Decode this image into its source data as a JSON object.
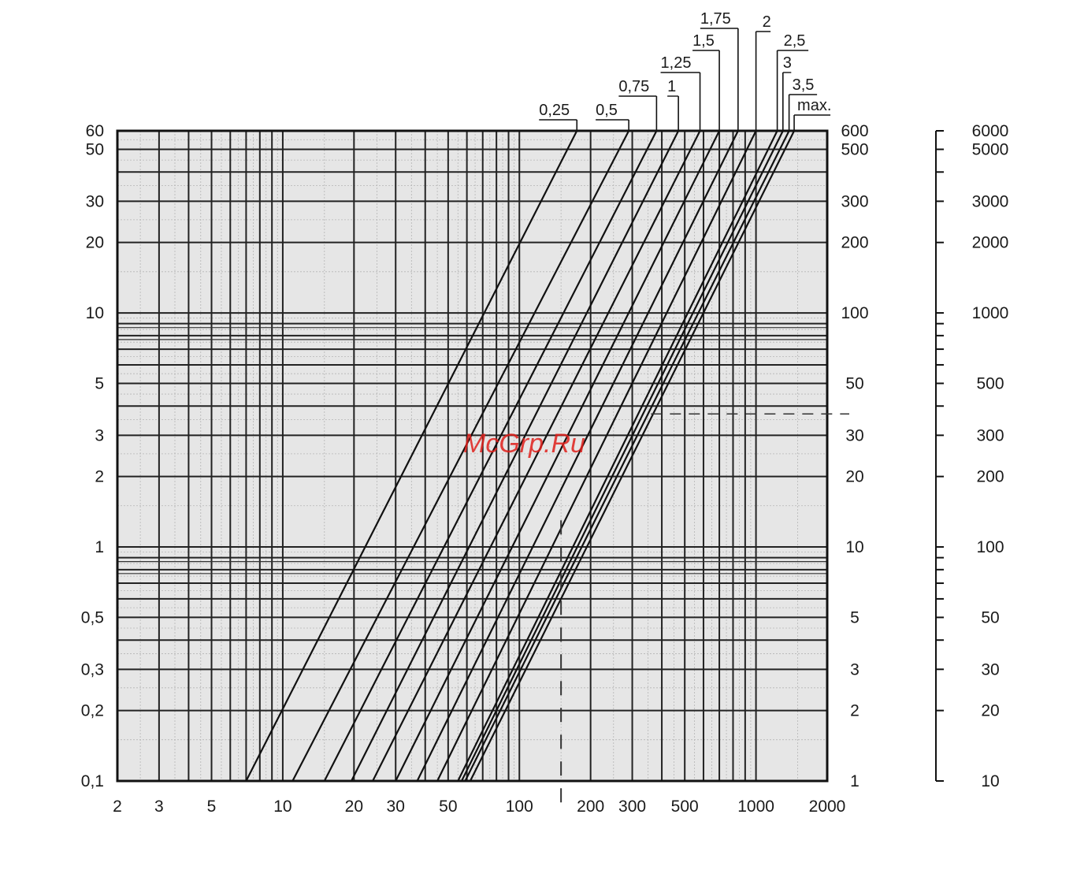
{
  "watermark": "McGrp.Ru",
  "chart_data": {
    "type": "line",
    "title": "",
    "xlabel": "",
    "ylabel": "",
    "x_scale": "log",
    "y_scale": "log",
    "xlim": [
      2,
      2000
    ],
    "ylim": [
      0.1,
      60
    ],
    "grid": true,
    "x_ticks": [
      "2",
      "3",
      "5",
      "10",
      "20",
      "30",
      "50",
      "100",
      "200",
      "300",
      "500",
      "1000",
      "2000"
    ],
    "x_tick_values": [
      2,
      3,
      5,
      10,
      20,
      30,
      50,
      100,
      200,
      300,
      500,
      1000,
      2000
    ],
    "y_left_ticks": [
      "0,1",
      "0,2",
      "0,3",
      "0,5",
      "1",
      "2",
      "3",
      "5",
      "10",
      "20",
      "30",
      "50",
      "60"
    ],
    "y_left_values": [
      0.1,
      0.2,
      0.3,
      0.5,
      1,
      2,
      3,
      5,
      10,
      20,
      30,
      50,
      60
    ],
    "y_right_ticks": [
      "1",
      "2",
      "3",
      "5",
      "10",
      "20",
      "30",
      "50",
      "100",
      "200",
      "300",
      "500",
      "600"
    ],
    "y_right_values": [
      0.1,
      0.2,
      0.3,
      0.5,
      1,
      2,
      3,
      5,
      10,
      20,
      30,
      50,
      60
    ],
    "y_far_right_ticks": [
      "10",
      "20",
      "30",
      "50",
      "100",
      "200",
      "300",
      "500",
      "1000",
      "2000",
      "3000",
      "5000",
      "6000"
    ],
    "y_far_right_values": [
      0.1,
      0.2,
      0.3,
      0.5,
      1,
      2,
      3,
      5,
      10,
      20,
      30,
      50,
      60
    ],
    "series": [
      {
        "name": "0,25",
        "x": [
          7,
          175
        ],
        "y": [
          0.1,
          60
        ]
      },
      {
        "name": "0,5",
        "x": [
          11,
          290
        ],
        "y": [
          0.1,
          60
        ]
      },
      {
        "name": "0,75",
        "x": [
          15,
          380
        ],
        "y": [
          0.1,
          60
        ]
      },
      {
        "name": "1",
        "x": [
          19.5,
          470
        ],
        "y": [
          0.1,
          60
        ]
      },
      {
        "name": "1,25",
        "x": [
          24,
          580
        ],
        "y": [
          0.1,
          60
        ]
      },
      {
        "name": "1,5",
        "x": [
          30,
          700
        ],
        "y": [
          0.1,
          60
        ]
      },
      {
        "name": "1,75",
        "x": [
          37,
          840
        ],
        "y": [
          0.1,
          60
        ]
      },
      {
        "name": "2",
        "x": [
          45,
          1000
        ],
        "y": [
          0.1,
          60
        ]
      },
      {
        "name": "2,5",
        "x": [
          55,
          1230
        ],
        "y": [
          0.1,
          60
        ]
      },
      {
        "name": "3",
        "x": [
          57,
          1300
        ],
        "y": [
          0.1,
          60
        ]
      },
      {
        "name": "3,5",
        "x": [
          59,
          1380
        ],
        "y": [
          0.1,
          60
        ]
      },
      {
        "name": "max.",
        "x": [
          62,
          1450
        ],
        "y": [
          0.1,
          60
        ]
      }
    ],
    "annotations": [
      {
        "type": "dashed-horizontal",
        "y": 3.7,
        "x_from": 360,
        "x_to": 2000
      },
      {
        "type": "dashed-vertical",
        "x": 150,
        "y_from": 0.07,
        "y_to": 1.3
      }
    ]
  }
}
